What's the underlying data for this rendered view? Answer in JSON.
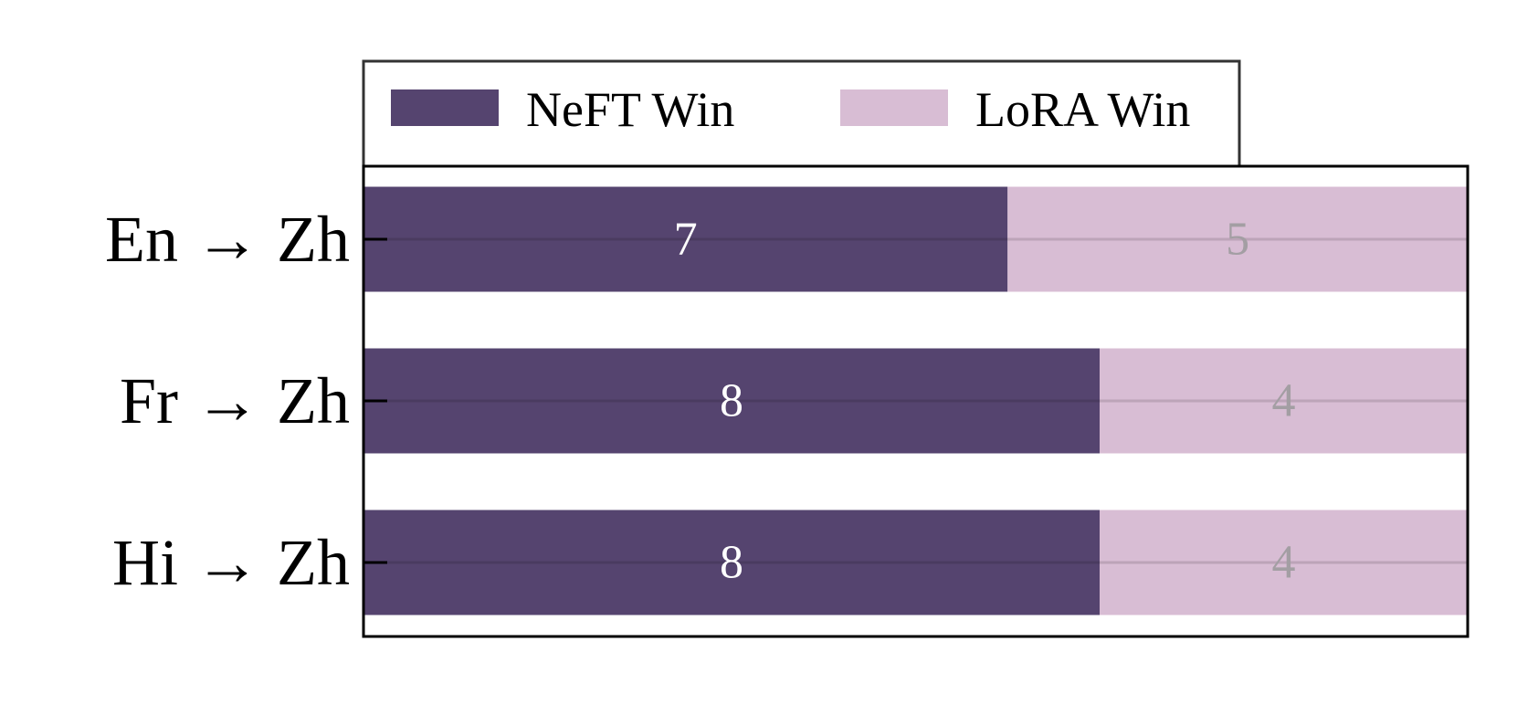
{
  "chart_data": {
    "type": "bar",
    "orientation": "horizontal",
    "stacked": true,
    "categories": [
      "En → Zh",
      "Fr → Zh",
      "Hi → Zh"
    ],
    "series": [
      {
        "name": "NeFT Win",
        "values": [
          7,
          8,
          8
        ],
        "color": "#55446f",
        "label_color": "#ffffff"
      },
      {
        "name": "LoRA Win",
        "values": [
          5,
          4,
          4
        ],
        "color": "#d8bdd4",
        "label_color": "#a39ea3"
      }
    ],
    "title": "",
    "xlabel": "",
    "ylabel": "",
    "xlim": [
      0,
      12
    ],
    "grid": true,
    "legend_position": "top-outside"
  }
}
